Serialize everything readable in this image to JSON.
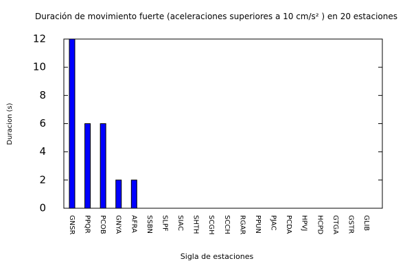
{
  "chart_data": {
    "type": "bar",
    "title": "Duración de movimiento fuerte (aceleraciones superiores a 10 cm/s² ) en 20 estaciones",
    "x_label": "Sigla de estaciones",
    "y_label": "Duracion (s)",
    "categories": [
      "GNSR",
      "PPQR",
      "PCOB",
      "GNYA",
      "AFRA",
      "SSBN",
      "SLPF",
      "SIAC",
      "SHTH",
      "SCGH",
      "SCCH",
      "RGAR",
      "PPUN",
      "PJAC",
      "PCDA",
      "HPVJ",
      "HCPD",
      "GTGA",
      "GSTR",
      "GLIB"
    ],
    "values": [
      12,
      6,
      6,
      2,
      2,
      0,
      0,
      0,
      0,
      0,
      0,
      0,
      0,
      0,
      0,
      0,
      0,
      0,
      0,
      0
    ],
    "color": "#0000ff",
    "ylim": [
      0,
      12
    ],
    "yticks": [
      0,
      2,
      4,
      6,
      8,
      10,
      12
    ],
    "grid": false
  }
}
